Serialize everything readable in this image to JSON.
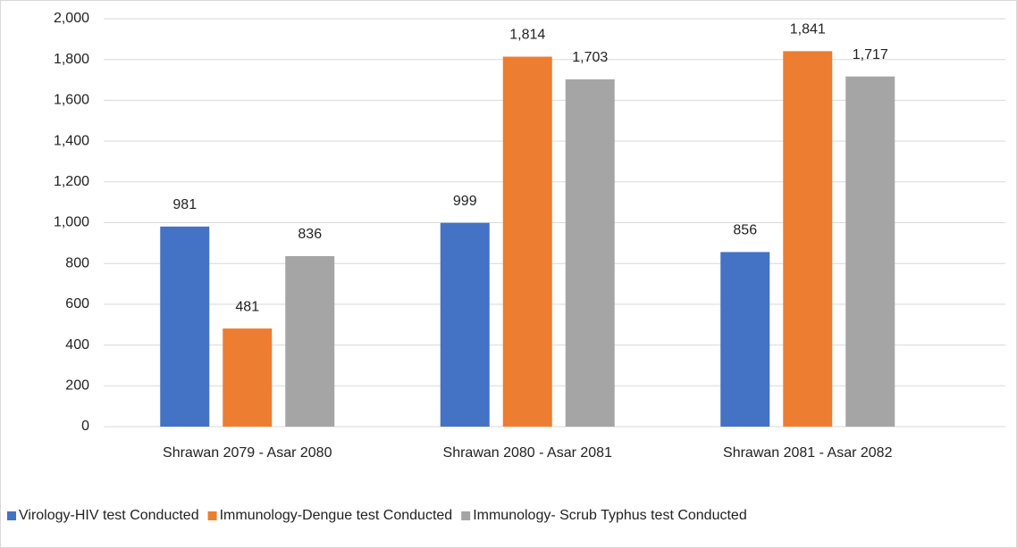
{
  "chart_data": {
    "type": "bar",
    "categories": [
      "Shrawan 2079 - Asar 2080",
      "Shrawan 2080 - Asar 2081",
      "Shrawan 2081 - Asar 2082"
    ],
    "series": [
      {
        "name": "Virology-HIV test Conducted",
        "color": "#4472c4",
        "values": [
          981,
          999,
          856
        ],
        "value_labels": [
          "981",
          "999",
          "856"
        ]
      },
      {
        "name": "Immunology-Dengue test Conducted",
        "color": "#ed7d31",
        "values": [
          481,
          1814,
          1841
        ],
        "value_labels": [
          "481",
          "1,814",
          "1,841"
        ]
      },
      {
        "name": "Immunology- Scrub Typhus test Conducted",
        "color": "#a5a5a5",
        "values": [
          836,
          1703,
          1717
        ],
        "value_labels": [
          "836",
          "1,703",
          "1,717"
        ]
      }
    ],
    "ylim": [
      0,
      2000
    ],
    "yticks": [
      0,
      200,
      400,
      600,
      800,
      {
        "value": 1000,
        "label": "1,000"
      },
      {
        "value": 1200,
        "label": "1,200"
      },
      {
        "value": 1400,
        "label": "1,400"
      },
      {
        "value": 1600,
        "label": "1,600"
      },
      {
        "value": 1800,
        "label": "1,800"
      },
      {
        "value": 2000,
        "label": "2,000"
      }
    ],
    "grid": true,
    "legend": "bottom"
  }
}
